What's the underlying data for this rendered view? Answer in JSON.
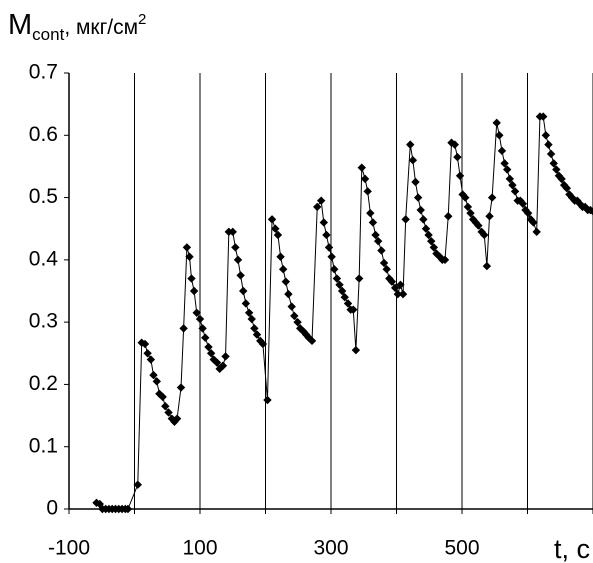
{
  "chart_data": {
    "type": "line",
    "y_label": {
      "symbol": "M",
      "subscript": "cont",
      "unit": ", мкг/см",
      "superscript": "2"
    },
    "x_label": "t, с",
    "xlim": [
      -100,
      700
    ],
    "ylim": [
      0,
      0.7
    ],
    "xticks": [
      -100,
      100,
      300,
      500
    ],
    "xgrid": [
      0,
      100,
      200,
      300,
      400,
      500,
      600,
      700
    ],
    "yticks": [
      0,
      0.1,
      0.2,
      0.3,
      0.4,
      0.5,
      0.6,
      0.7
    ],
    "grid": true,
    "series": [
      {
        "color": "#000000",
        "x": [
          -58,
          -53,
          -49,
          -44,
          -39,
          -34,
          -29,
          -24,
          -19,
          -14,
          -10,
          5,
          11,
          16,
          20,
          25,
          29,
          34,
          38,
          43,
          47,
          52,
          57,
          61,
          65,
          71,
          75,
          80,
          84,
          87,
          91,
          95,
          100,
          104,
          108,
          113,
          117,
          121,
          126,
          130,
          135,
          139,
          144,
          150,
          154,
          158,
          162,
          166,
          170,
          175,
          179,
          183,
          187,
          192,
          196,
          203,
          210,
          215,
          219,
          223,
          227,
          231,
          235,
          240,
          244,
          249,
          253,
          258,
          262,
          266,
          271,
          279,
          285,
          289,
          293,
          297,
          301,
          305,
          309,
          313,
          317,
          321,
          326,
          330,
          334,
          338,
          343,
          347,
          352,
          356,
          360,
          364,
          368,
          372,
          377,
          381,
          385,
          389,
          393,
          398,
          402,
          406,
          410,
          414,
          421,
          425,
          429,
          433,
          437,
          441,
          445,
          449,
          453,
          457,
          461,
          466,
          470,
          474,
          479,
          484,
          489,
          493,
          497,
          501,
          505,
          509,
          513,
          517,
          521,
          525,
          530,
          534,
          538,
          542,
          546,
          553,
          557,
          561,
          565,
          569,
          573,
          577,
          581,
          585,
          589,
          593,
          597,
          601,
          605,
          609,
          614,
          619,
          624,
          628,
          632,
          636,
          640,
          644,
          648,
          652,
          656,
          660,
          664,
          668,
          672,
          676,
          680,
          684,
          688,
          692,
          696,
          700
        ],
        "values": [
          0.01,
          0.008,
          0,
          0,
          0,
          0,
          0,
          0,
          0,
          0,
          0,
          0.039,
          0.267,
          0.265,
          0.25,
          0.24,
          0.215,
          0.205,
          0.185,
          0.18,
          0.165,
          0.155,
          0.145,
          0.14,
          0.145,
          0.195,
          0.29,
          0.42,
          0.405,
          0.37,
          0.35,
          0.315,
          0.305,
          0.29,
          0.275,
          0.26,
          0.25,
          0.24,
          0.235,
          0.225,
          0.23,
          0.245,
          0.445,
          0.445,
          0.42,
          0.4,
          0.375,
          0.35,
          0.33,
          0.315,
          0.305,
          0.29,
          0.28,
          0.27,
          0.265,
          0.175,
          0.465,
          0.45,
          0.44,
          0.405,
          0.385,
          0.365,
          0.345,
          0.325,
          0.31,
          0.3,
          0.29,
          0.285,
          0.28,
          0.275,
          0.27,
          0.485,
          0.495,
          0.46,
          0.44,
          0.42,
          0.405,
          0.385,
          0.37,
          0.36,
          0.35,
          0.34,
          0.33,
          0.32,
          0.32,
          0.255,
          0.37,
          0.548,
          0.53,
          0.51,
          0.475,
          0.46,
          0.44,
          0.43,
          0.415,
          0.395,
          0.385,
          0.37,
          0.365,
          0.355,
          0.345,
          0.36,
          0.345,
          0.465,
          0.585,
          0.56,
          0.525,
          0.5,
          0.48,
          0.465,
          0.45,
          0.44,
          0.43,
          0.42,
          0.41,
          0.405,
          0.4,
          0.4,
          0.47,
          0.588,
          0.585,
          0.565,
          0.535,
          0.505,
          0.5,
          0.485,
          0.475,
          0.465,
          0.46,
          0.455,
          0.445,
          0.44,
          0.39,
          0.47,
          0.5,
          0.62,
          0.6,
          0.575,
          0.555,
          0.545,
          0.53,
          0.52,
          0.51,
          0.495,
          0.495,
          0.49,
          0.48,
          0.475,
          0.465,
          0.46,
          0.445,
          0.63,
          0.63,
          0.6,
          0.585,
          0.57,
          0.555,
          0.545,
          0.535,
          0.53,
          0.52,
          0.515,
          0.505,
          0.5,
          0.495,
          0.495,
          0.49,
          0.485,
          0.485,
          0.48,
          0.48,
          0.478
        ]
      }
    ]
  }
}
